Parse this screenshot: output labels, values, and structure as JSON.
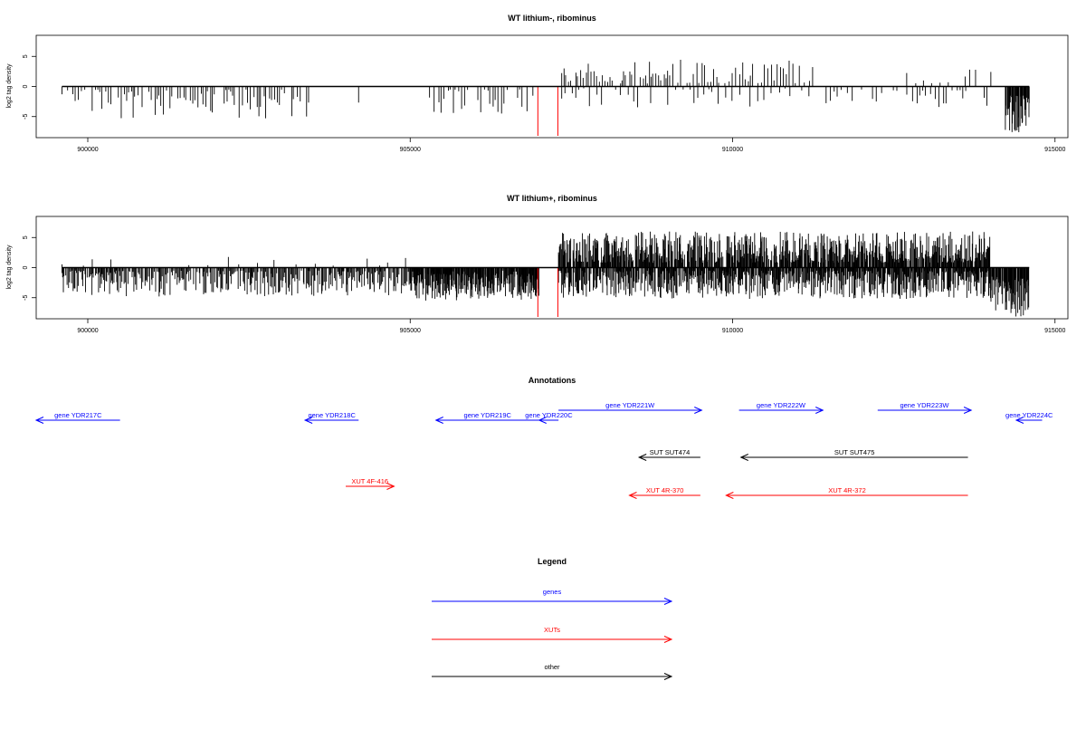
{
  "chart_data": [
    {
      "type": "bar",
      "title": "WT lithium-, ribominus",
      "ylabel": "log2 tag density",
      "xlabel": "",
      "xlim": [
        899200,
        915200
      ],
      "ylim": [
        -8.5,
        8.5
      ],
      "xticks": [
        900000,
        905000,
        910000,
        915000
      ],
      "yticks": [
        5,
        0,
        -5
      ],
      "segments": [
        {
          "x0": 899600,
          "x1": 903450,
          "sign": -1,
          "amp_min": 0.5,
          "amp_max": 5.3,
          "spacing": 42,
          "seed": 11
        },
        {
          "x0": 904200,
          "x1": 904250,
          "sign": -1,
          "amp_min": 2.5,
          "amp_max": 3.2,
          "spacing": 50,
          "seed": 12
        },
        {
          "x0": 905300,
          "x1": 906950,
          "sign": -1,
          "amp_min": 0.5,
          "amp_max": 4.5,
          "spacing": 40,
          "seed": 13
        },
        {
          "x0": 907350,
          "x1": 911250,
          "sign": 1,
          "amp_min": 0.5,
          "amp_max": 4.5,
          "spacing": 40,
          "seed": 14
        },
        {
          "x0": 907350,
          "x1": 911300,
          "sign": -1,
          "amp_min": 0.3,
          "amp_max": 3.5,
          "spacing": 85,
          "seed": 15
        },
        {
          "x0": 912700,
          "x1": 914050,
          "sign": 1,
          "amp_min": 0.5,
          "amp_max": 3.2,
          "spacing": 110,
          "seed": 16
        },
        {
          "x0": 911450,
          "x1": 914050,
          "sign": -1,
          "amp_min": 0.5,
          "amp_max": 3.5,
          "spacing": 70,
          "seed": 17
        },
        {
          "x0": 914230,
          "x1": 914600,
          "sign": -1,
          "amp_min": 1.5,
          "amp_max": 8.0,
          "spacing": 7,
          "seed": 18
        }
      ],
      "red_marks": [
        {
          "x": 906980,
          "y": -8.2
        },
        {
          "x": 907290,
          "y": -8.2
        }
      ]
    },
    {
      "type": "bar",
      "title": "WT lithium+, ribominus",
      "ylabel": "log2 tag density",
      "xlabel": "",
      "xlim": [
        899200,
        915200
      ],
      "ylim": [
        -8.5,
        8.5
      ],
      "xticks": [
        900000,
        905000,
        910000,
        915000
      ],
      "yticks": [
        5,
        0,
        -5
      ],
      "segments": [
        {
          "x0": 899600,
          "x1": 906950,
          "sign": -1,
          "amp_min": 0.5,
          "amp_max": 4.8,
          "spacing": 14,
          "seed": 21
        },
        {
          "x0": 899600,
          "x1": 905000,
          "sign": 1,
          "amp_min": 0.3,
          "amp_max": 1.8,
          "spacing": 240,
          "seed": 22
        },
        {
          "x0": 905000,
          "x1": 907000,
          "sign": -1,
          "amp_min": 1.0,
          "amp_max": 5.5,
          "spacing": 9,
          "seed": 23
        },
        {
          "x0": 907300,
          "x1": 914000,
          "sign": 1,
          "amp_min": 0.8,
          "amp_max": 6.0,
          "spacing": 8,
          "seed": 24
        },
        {
          "x0": 907300,
          "x1": 914000,
          "sign": -1,
          "amp_min": 0.5,
          "amp_max": 5.2,
          "spacing": 8,
          "seed": 25
        },
        {
          "x0": 914000,
          "x1": 914600,
          "sign": -1,
          "amp_min": 1.5,
          "amp_max": 8.2,
          "spacing": 6,
          "seed": 26
        }
      ],
      "red_marks": [
        {
          "x": 906980,
          "y": -8.2
        },
        {
          "x": 907290,
          "y": -8.2
        }
      ]
    }
  ],
  "annotations": {
    "title": "Annotations",
    "features": [
      {
        "label": "gene YDR217C",
        "color": "#0000ff",
        "x0": 900500,
        "x1": 899200,
        "direction": "left",
        "row": "g1"
      },
      {
        "label": "gene YDR218C",
        "color": "#0000ff",
        "x0": 904200,
        "x1": 903370,
        "direction": "left",
        "row": "g1"
      },
      {
        "label": "gene YDR219C",
        "color": "#0000ff",
        "x0": 907000,
        "x1": 905400,
        "direction": "left",
        "row": "g1"
      },
      {
        "label": "gene YDR220C",
        "color": "#0000ff",
        "x0": 907300,
        "x1": 907000,
        "direction": "left",
        "row": "g1"
      },
      {
        "label": "gene YDR221W",
        "color": "#0000ff",
        "x0": 907300,
        "x1": 909520,
        "direction": "right",
        "row": "g2"
      },
      {
        "label": "gene YDR222W",
        "color": "#0000ff",
        "x0": 910100,
        "x1": 911400,
        "direction": "right",
        "row": "g2"
      },
      {
        "label": "gene YDR223W",
        "color": "#0000ff",
        "x0": 912250,
        "x1": 913700,
        "direction": "right",
        "row": "g2"
      },
      {
        "label": "gene YDR224C",
        "color": "#0000ff",
        "x0": 914800,
        "x1": 914400,
        "direction": "left",
        "row": "g1"
      },
      {
        "label": "SUT SUT474",
        "color": "#000000",
        "x0": 909500,
        "x1": 908550,
        "direction": "left",
        "row": "s"
      },
      {
        "label": "SUT SUT475",
        "color": "#000000",
        "x0": 913650,
        "x1": 910130,
        "direction": "left",
        "row": "s"
      },
      {
        "label": "XUT 4F-416",
        "color": "#ff0000",
        "x0": 904000,
        "x1": 904750,
        "direction": "right",
        "row": "x1"
      },
      {
        "label": "XUT 4R-370",
        "color": "#ff0000",
        "x0": 909500,
        "x1": 908400,
        "direction": "left",
        "row": "x2"
      },
      {
        "label": "XUT 4R-372",
        "color": "#ff0000",
        "x0": 913650,
        "x1": 909900,
        "direction": "left",
        "row": "x2"
      }
    ]
  },
  "legend": {
    "title": "Legend",
    "items": [
      {
        "label": "genes",
        "color": "#0000ff"
      },
      {
        "label": "XUTs",
        "color": "#ff0000"
      },
      {
        "label": "other",
        "color": "#000000"
      }
    ]
  }
}
